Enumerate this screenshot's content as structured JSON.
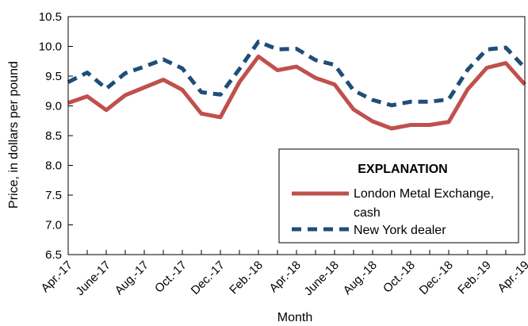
{
  "chart_data": {
    "type": "line",
    "categories": [
      "Apr.-17",
      "May-17",
      "June-17",
      "July-17",
      "Aug.-17",
      "Sept.-17",
      "Oct.-17",
      "Nov.-17",
      "Dec.-17",
      "Jan.-18",
      "Feb.-18",
      "Mar.-18",
      "Apr.-18",
      "May-18",
      "June-18",
      "July-18",
      "Aug.-18",
      "Sept.-18",
      "Oct.-18",
      "Nov.-18",
      "Dec.-18",
      "Jan.-19",
      "Feb.-19",
      "Mar.-19",
      "Apr.-19"
    ],
    "tick_labels": [
      "Apr.-17",
      "June-17",
      "Aug.-17",
      "Oct.-17",
      "Dec.-17",
      "Feb.-18",
      "Apr.-18",
      "June-18",
      "Aug.-18",
      "Oct.-18",
      "Dec.-18",
      "Feb.-19",
      "Apr.-19"
    ],
    "series": [
      {
        "name": "London Metal Exchange, cash",
        "color": "#c0504d",
        "style": "solid",
        "values": [
          9.05,
          9.16,
          8.93,
          9.18,
          9.31,
          9.44,
          9.27,
          8.87,
          8.81,
          9.4,
          9.83,
          9.6,
          9.66,
          9.47,
          9.36,
          8.94,
          8.74,
          8.62,
          8.68,
          8.68,
          8.73,
          9.28,
          9.64,
          9.72,
          9.36
        ]
      },
      {
        "name": "New York dealer",
        "color": "#1f4e79",
        "style": "dashed",
        "values": [
          9.4,
          9.56,
          9.29,
          9.55,
          9.66,
          9.78,
          9.63,
          9.23,
          9.19,
          9.62,
          10.08,
          9.95,
          9.96,
          9.77,
          9.69,
          9.26,
          9.1,
          9.01,
          9.07,
          9.07,
          9.11,
          9.61,
          9.95,
          9.98,
          9.64
        ]
      }
    ],
    "xlabel": "Month",
    "ylabel": "Price, in dollars per pound",
    "ylim": [
      6.5,
      10.5
    ],
    "yticks": [
      "6.5",
      "7.0",
      "7.5",
      "8.0",
      "8.5",
      "9.0",
      "9.5",
      "10.0",
      "10.5"
    ],
    "legend": {
      "title": "EXPLANATION",
      "placement": "bottom-right"
    },
    "grid": false
  }
}
